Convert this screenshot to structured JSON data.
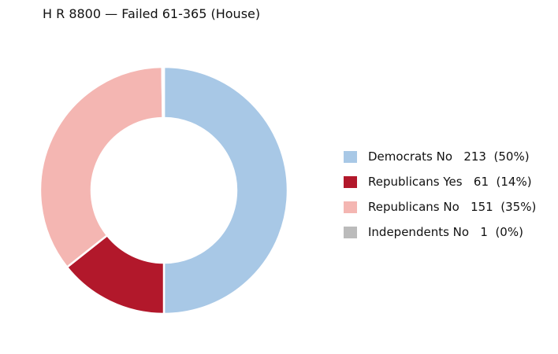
{
  "chart_data": {
    "type": "pie",
    "variant": "donut",
    "title": "H R 8800 — Failed 61-365 (House)",
    "slices": [
      {
        "label": "Democrats No",
        "value": 213,
        "percent": "50%",
        "color": "#a8c8e6"
      },
      {
        "label": "Republicans Yes",
        "value": 61,
        "percent": "14%",
        "color": "#b2182b"
      },
      {
        "label": "Republicans No",
        "value": 151,
        "percent": "35%",
        "color": "#f4b6b2"
      },
      {
        "label": "Independents No",
        "value": 1,
        "percent": "0%",
        "color": "#bbbbbb"
      }
    ],
    "legend_position": "right",
    "grid": false
  }
}
